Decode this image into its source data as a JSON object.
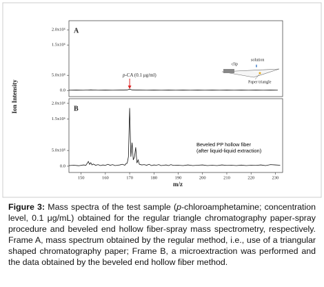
{
  "chart_data": [
    {
      "type": "line",
      "panel_label": "A",
      "ylabel": "Ion Intensity",
      "xlim": [
        145,
        233
      ],
      "ylim": [
        -200000,
        2300000
      ],
      "yticks": [
        {
          "value": 0,
          "label": "0.0"
        },
        {
          "value": 500000,
          "label": "5.0x10⁵"
        },
        {
          "value": 1500000,
          "label": "1.5x10⁶"
        },
        {
          "value": 2000000,
          "label": "2.0x10⁶"
        }
      ],
      "annotation": {
        "italic": "p",
        "text": "-CA (0.1 μg/ml)",
        "x": 170
      },
      "inset": {
        "solution": "solution",
        "clip": "clip",
        "paper": "Paper triangle"
      },
      "series": [
        {
          "color": "#111111",
          "x": [
            145,
            148,
            151,
            154,
            157,
            160,
            163,
            166,
            169,
            170,
            171,
            174,
            177,
            180,
            183,
            186,
            189,
            192,
            195,
            198,
            201,
            204,
            207,
            210,
            213,
            216,
            219,
            222,
            225,
            228,
            231
          ],
          "values": [
            10000,
            15000,
            10000,
            20000,
            10000,
            15000,
            10000,
            15000,
            20000,
            45000,
            20000,
            15000,
            10000,
            15000,
            10000,
            15000,
            10000,
            15000,
            10000,
            15000,
            10000,
            15000,
            10000,
            15000,
            10000,
            15000,
            10000,
            15000,
            10000,
            15000,
            10000
          ]
        }
      ]
    },
    {
      "type": "line",
      "panel_label": "B",
      "xlabel": "m/z",
      "xlim": [
        145,
        233
      ],
      "ylim": [
        -200000,
        2150000
      ],
      "xticks": [
        150,
        160,
        170,
        180,
        190,
        200,
        210,
        220,
        230
      ],
      "yticks": [
        {
          "value": 0,
          "label": "0.0"
        },
        {
          "value": 500000,
          "label": "5.0x10⁵"
        },
        {
          "value": 1500000,
          "label": "1.5x10⁶"
        },
        {
          "value": 2000000,
          "label": "2.0x10⁶"
        }
      ],
      "annotation_lines": [
        "Beveled PP hollow fiber",
        "(after liquid-liquid extraction)"
      ],
      "series": [
        {
          "color": "#111111",
          "x": [
            145,
            147,
            149,
            151,
            152,
            153,
            153.5,
            154,
            154.5,
            155,
            156,
            157,
            158,
            159,
            160,
            161,
            162,
            163,
            164,
            165,
            166,
            167,
            168,
            168.5,
            169,
            169.5,
            170,
            170.5,
            171,
            171.5,
            172,
            172.5,
            173,
            173.5,
            174,
            175,
            176,
            177,
            178,
            179,
            180,
            181,
            182,
            183,
            184,
            185,
            186,
            187,
            188,
            190,
            192,
            194,
            196,
            198,
            200,
            202,
            204,
            206,
            208,
            210,
            212,
            214,
            216,
            218,
            220,
            222,
            224,
            226,
            228,
            230,
            232
          ],
          "values": [
            20000,
            30000,
            15000,
            40000,
            30000,
            150000,
            60000,
            110000,
            40000,
            70000,
            30000,
            50000,
            20000,
            40000,
            25000,
            60000,
            30000,
            50000,
            20000,
            30000,
            40000,
            60000,
            30000,
            80000,
            100000,
            300000,
            1850000,
            300000,
            750000,
            200000,
            300000,
            600000,
            100000,
            200000,
            60000,
            40000,
            50000,
            30000,
            60000,
            20000,
            40000,
            30000,
            50000,
            20000,
            30000,
            40000,
            20000,
            50000,
            25000,
            30000,
            20000,
            40000,
            20000,
            30000,
            40000,
            20000,
            30000,
            20000,
            40000,
            25000,
            30000,
            20000,
            35000,
            20000,
            30000,
            25000,
            40000,
            20000,
            50000,
            40000,
            30000
          ]
        }
      ]
    }
  ],
  "caption": {
    "label": "Figure 3:",
    "part1": "Mass spectra of the test sample (",
    "italic": "p",
    "part2": "-chloroamphetamine; concentration level, 0.1 μg/mL) obtained for the regular triangle chromatography paper-spray procedure and beveled end hollow fiber-spray mass spectrometry, respectively. Frame A, mass spectrum obtained by the regular method, i.e., use of a triangular shaped chromatography paper; Frame B, a microextraction was performed and the data obtained by the beveled end hollow fiber method."
  }
}
